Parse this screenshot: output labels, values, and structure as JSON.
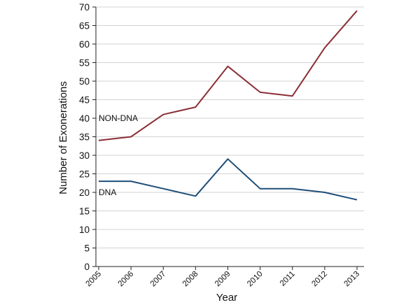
{
  "chart_data": {
    "type": "line",
    "title": "",
    "xlabel": "Year",
    "ylabel": "Number of Exonerations",
    "x": [
      "2005",
      "2006",
      "2007",
      "2008",
      "2009",
      "2010",
      "2011",
      "2012",
      "2013"
    ],
    "ylim": [
      0,
      70
    ],
    "yticks": [
      0,
      5,
      10,
      15,
      20,
      25,
      30,
      35,
      40,
      45,
      50,
      55,
      60,
      65,
      70
    ],
    "grid": true,
    "legend": "inline labels",
    "series": [
      {
        "name": "NON-DNA",
        "color": "#8b2f35",
        "values": [
          34,
          35,
          41,
          43,
          54,
          47,
          46,
          59,
          69
        ]
      },
      {
        "name": "DNA",
        "color": "#1f4e79",
        "values": [
          23,
          23,
          21,
          19,
          29,
          21,
          21,
          20,
          18
        ]
      }
    ]
  }
}
